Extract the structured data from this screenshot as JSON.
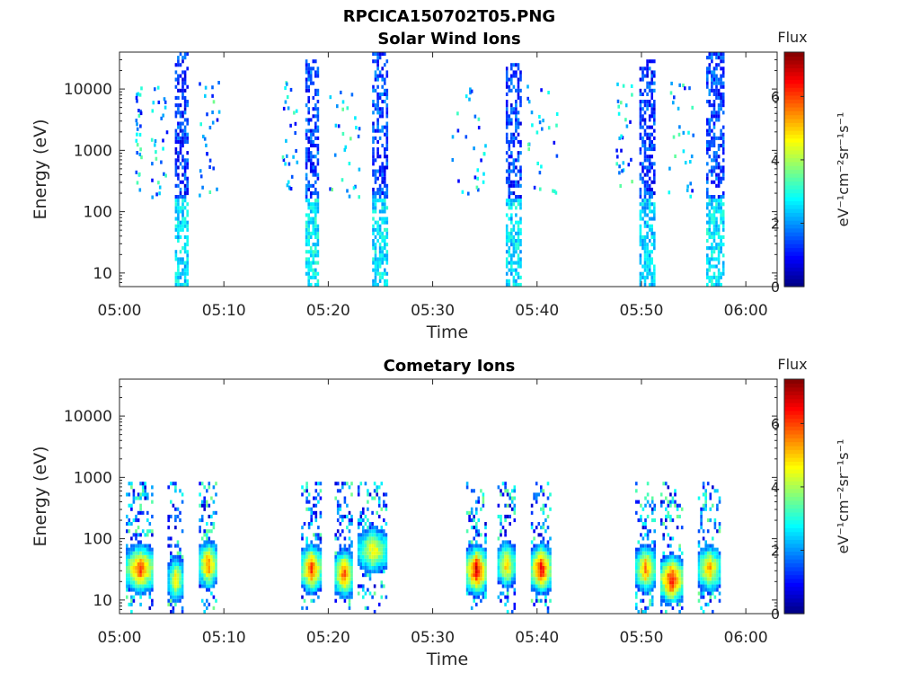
{
  "figure_title": "RPCICA150702T05.PNG",
  "panels_titles": [
    "Solar Wind Ions",
    "Cometary Ions"
  ],
  "colorbar": {
    "title": "Flux",
    "unit_label": "eV⁻¹cm⁻²sr⁻¹s⁻¹",
    "ticks": [
      "0",
      "2",
      "4",
      "6"
    ],
    "range": [
      0,
      7.4
    ],
    "colormap": "jet"
  },
  "chart_data": [
    {
      "type": "heatmap",
      "title": "Solar Wind Ions",
      "xlabel": "Time",
      "ylabel": "Energy (eV)",
      "x_ticks": [
        "05:00",
        "05:10",
        "05:20",
        "05:30",
        "05:40",
        "05:50",
        "06:00"
      ],
      "x_tick_minutes": [
        0,
        10,
        20,
        30,
        40,
        50,
        60
      ],
      "xlim_minutes": [
        0,
        63
      ],
      "y_scale": "log",
      "y_ticks": [
        "10",
        "100",
        "1000",
        "10000"
      ],
      "y_tick_values": [
        10,
        100,
        1000,
        10000
      ],
      "ylim": [
        6,
        40000
      ],
      "bursts": [
        {
          "t_start": 5.3,
          "t_end": 6.5,
          "e_min": 6,
          "e_max": 35000,
          "low_flux": 2.4,
          "high_flux": 0.6
        },
        {
          "t_start": 17.8,
          "t_end": 19.0,
          "e_min": 6,
          "e_max": 30000,
          "low_flux": 2.6,
          "high_flux": 0.7
        },
        {
          "t_start": 24.2,
          "t_end": 25.7,
          "e_min": 6,
          "e_max": 35000,
          "low_flux": 2.5,
          "high_flux": 0.7
        },
        {
          "t_start": 37.0,
          "t_end": 38.4,
          "e_min": 6,
          "e_max": 25000,
          "low_flux": 2.4,
          "high_flux": 0.6
        },
        {
          "t_start": 49.8,
          "t_end": 51.2,
          "e_min": 6,
          "e_max": 28000,
          "low_flux": 2.3,
          "high_flux": 0.6
        },
        {
          "t_start": 56.2,
          "t_end": 57.8,
          "e_min": 6,
          "e_max": 35000,
          "low_flux": 2.5,
          "high_flux": 0.7
        }
      ],
      "scattered_flux": 2.2
    },
    {
      "type": "heatmap",
      "title": "Cometary Ions",
      "xlabel": "Time",
      "ylabel": "Energy (eV)",
      "x_ticks": [
        "05:00",
        "05:10",
        "05:20",
        "05:30",
        "05:40",
        "05:50",
        "06:00"
      ],
      "x_tick_minutes": [
        0,
        10,
        20,
        30,
        40,
        50,
        60
      ],
      "xlim_minutes": [
        0,
        63
      ],
      "y_scale": "log",
      "y_ticks": [
        "10",
        "100",
        "1000",
        "10000"
      ],
      "y_tick_values": [
        10,
        100,
        1000,
        10000
      ],
      "ylim": [
        6,
        40000
      ],
      "bursts": [
        {
          "t_start": 0.6,
          "t_end": 3.2,
          "peak_energy": 30,
          "peak_flux": 6.0
        },
        {
          "t_start": 4.6,
          "t_end": 6.0,
          "peak_energy": 20,
          "peak_flux": 4.8
        },
        {
          "t_start": 7.6,
          "t_end": 9.2,
          "peak_energy": 35,
          "peak_flux": 5.8
        },
        {
          "t_start": 17.4,
          "t_end": 19.2,
          "peak_energy": 30,
          "peak_flux": 6.2
        },
        {
          "t_start": 20.6,
          "t_end": 22.2,
          "peak_energy": 25,
          "peak_flux": 6.0
        },
        {
          "t_start": 22.8,
          "t_end": 25.6,
          "peak_energy": 60,
          "peak_flux": 4.8
        },
        {
          "t_start": 33.2,
          "t_end": 35.0,
          "peak_energy": 28,
          "peak_flux": 6.8
        },
        {
          "t_start": 36.2,
          "t_end": 37.8,
          "peak_energy": 35,
          "peak_flux": 5.2
        },
        {
          "t_start": 39.4,
          "t_end": 41.2,
          "peak_energy": 30,
          "peak_flux": 6.6
        },
        {
          "t_start": 49.4,
          "t_end": 51.2,
          "peak_energy": 30,
          "peak_flux": 5.6
        },
        {
          "t_start": 51.8,
          "t_end": 53.8,
          "peak_energy": 20,
          "peak_flux": 6.6
        },
        {
          "t_start": 55.4,
          "t_end": 57.4,
          "peak_energy": 30,
          "peak_flux": 5.4
        }
      ]
    }
  ]
}
